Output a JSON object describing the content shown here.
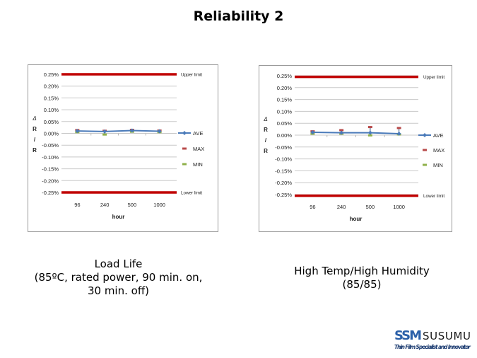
{
  "title": "Reliability 2",
  "colors": {
    "limit": "#c00000",
    "ave": "#4a7ab9",
    "max": "#b84a4a",
    "min": "#8fb04a",
    "grid": "#c8c8c8"
  },
  "chart_data": [
    {
      "type": "line",
      "name": "load-life",
      "title": "",
      "xlabel": "hour",
      "ylabel": [
        "Δ",
        "R",
        "/",
        "R"
      ],
      "categories": [
        "96",
        "240",
        "500",
        "1000"
      ],
      "ylim": [
        -0.25,
        0.25
      ],
      "yticks": [
        "0.25%",
        "0.20%",
        "0.15%",
        "0.10%",
        "0.05%",
        "0.00%",
        "-0.05%",
        "-0.10%",
        "-0.15%",
        "-0.20%",
        "-0.25%"
      ],
      "ytick_values": [
        0.25,
        0.2,
        0.15,
        0.1,
        0.05,
        0.0,
        -0.05,
        -0.1,
        -0.15,
        -0.2,
        -0.25
      ],
      "grid": true,
      "limits": [
        {
          "label": "Upper limit",
          "value": 0.25
        },
        {
          "label": "Lower limit",
          "value": -0.25
        }
      ],
      "series": [
        {
          "name": "AVE",
          "values": [
            0.01,
            0.008,
            0.012,
            0.009
          ]
        },
        {
          "name": "MAX",
          "values": [
            0.014,
            0.011,
            0.015,
            0.012
          ]
        },
        {
          "name": "MIN",
          "values": [
            0.005,
            -0.005,
            0.007,
            0.005
          ]
        }
      ],
      "legend": "right"
    },
    {
      "type": "line",
      "name": "high-temp-humidity",
      "title": "",
      "xlabel": "hour",
      "ylabel": [
        "Δ",
        "R",
        "/",
        "R"
      ],
      "categories": [
        "96",
        "240",
        "500",
        "1000"
      ],
      "ylim": [
        -0.25,
        0.25
      ],
      "yticks": [
        "0.25%",
        "0.20%",
        "0.15%",
        "0.10%",
        "0.05%",
        "0.00%",
        "-0.05%",
        "-0.10%",
        "-0.15%",
        "-0.20%",
        "-0.25%"
      ],
      "ytick_values": [
        0.25,
        0.2,
        0.15,
        0.1,
        0.05,
        0.0,
        -0.05,
        -0.1,
        -0.15,
        -0.2,
        -0.25
      ],
      "grid": true,
      "limits": [
        {
          "label": "Upper limit",
          "value": 0.245
        },
        {
          "label": "Lower limit",
          "value": -0.255
        }
      ],
      "series": [
        {
          "name": "AVE",
          "values": [
            0.012,
            0.01,
            0.01,
            0.006
          ]
        },
        {
          "name": "MAX",
          "values": [
            0.016,
            0.021,
            0.034,
            0.03
          ]
        },
        {
          "name": "MIN",
          "values": [
            0.006,
            0.006,
            -0.001,
            0.003
          ]
        }
      ],
      "legend": "right"
    }
  ],
  "captions": {
    "left": [
      "Load Life",
      "(85ºC, rated power, 90 min. on,",
      "30 min. off)"
    ],
    "right": [
      "High Temp/High Humidity",
      "(85/85)"
    ]
  },
  "logo": {
    "brand_mark": "SSM",
    "brand_name": "SUSUMU",
    "tagline": "Thin Film Specialist and Innovator"
  }
}
